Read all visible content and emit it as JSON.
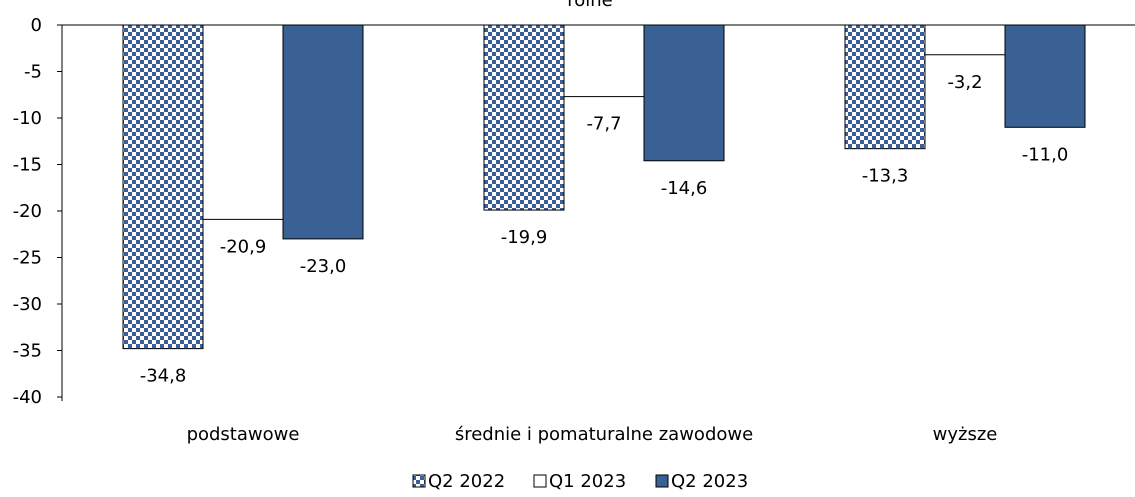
{
  "chart_data": {
    "type": "bar",
    "title": "rolne",
    "categories": [
      "podstawowe",
      "średnie i pomaturalne zawodowe",
      "wyższe"
    ],
    "series": [
      {
        "name": "Q2 2022",
        "values": [
          -34.8,
          -19.9,
          -13.3
        ],
        "fill": "checker",
        "color": "#3a5f98"
      },
      {
        "name": "Q1 2023",
        "values": [
          -20.9,
          -7.7,
          -3.2
        ],
        "fill": "solid",
        "color": "#ffffff"
      },
      {
        "name": "Q2 2023",
        "values": [
          -23.0,
          -14.6,
          -11.0
        ],
        "fill": "solid",
        "color": "#3a6194"
      }
    ],
    "data_labels": [
      [
        "-34,8",
        "-19,9",
        "-13,3"
      ],
      [
        "-20,9",
        "-7,7",
        "-3,2"
      ],
      [
        "-23,0",
        "-14,6",
        "-11,0"
      ]
    ],
    "ylim": [
      -40,
      0
    ],
    "yticks": [
      0,
      -5,
      -10,
      -15,
      -20,
      -25,
      -30,
      -35,
      -40
    ],
    "ytick_labels": [
      "0",
      "-5",
      "-10",
      "-15",
      "-20",
      "-25",
      "-30",
      "-35",
      "-40"
    ],
    "xlabel": "",
    "ylabel": "",
    "grid": false,
    "legend_position": "bottom"
  }
}
